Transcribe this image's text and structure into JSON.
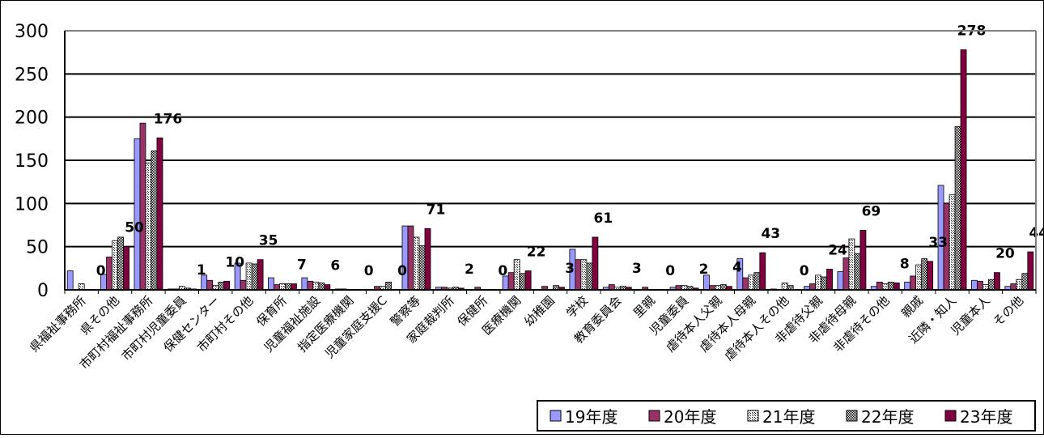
{
  "chart_data": {
    "type": "bar",
    "ylim": [
      0,
      300
    ],
    "y_ticks": [
      "0",
      "50",
      "100",
      "150",
      "200",
      "250",
      "300"
    ],
    "grid": true,
    "legend_position": "bottom-right",
    "categories": [
      "県福祉事務所",
      "県その他",
      "市町村福祉事務所",
      "市町村児童委員",
      "保健センター",
      "市町村その他",
      "保育所",
      "児童福祉施設",
      "指定医療機関",
      "児童家庭支援C",
      "警察等",
      "家庭裁判所",
      "保健所",
      "医療機関",
      "幼稚園",
      "学校",
      "教育委員会",
      "里親",
      "児童委員",
      "虐待本人父親",
      "虐待本人母親",
      "虐待本人その他",
      "非虐待父親",
      "非虐待母親",
      "非虐待その他",
      "親戚",
      "近隣・知人",
      "児童本人",
      "その他"
    ],
    "series": [
      {
        "name": "19年度",
        "color": "#9999ff",
        "values": [
          22,
          18,
          175,
          1,
          17,
          31,
          14,
          14,
          1,
          0,
          74,
          3,
          0,
          16,
          0,
          47,
          3,
          0,
          3,
          17,
          36,
          1,
          4,
          21,
          4,
          9,
          121,
          11,
          4
        ]
      },
      {
        "name": "20年度",
        "color": "#993366",
        "values": [
          0,
          38,
          193,
          1,
          11,
          11,
          6,
          10,
          1,
          4,
          74,
          3,
          3,
          20,
          4,
          35,
          6,
          3,
          5,
          5,
          14,
          0,
          7,
          37,
          9,
          16,
          100,
          10,
          7
        ]
      },
      {
        "name": "21年度",
        "color": "#e0e0e0",
        "values": [
          7,
          57,
          147,
          4,
          5,
          31,
          7,
          9,
          0,
          4,
          61,
          2,
          0,
          35,
          0,
          35,
          3,
          0,
          5,
          5,
          17,
          8,
          17,
          59,
          7,
          29,
          110,
          6,
          12
        ]
      },
      {
        "name": "22年度",
        "color": "#cfcfcf",
        "values": [
          0,
          61,
          161,
          2,
          9,
          30,
          7,
          8,
          0,
          9,
          51,
          3,
          0,
          19,
          5,
          31,
          4,
          0,
          4,
          6,
          20,
          5,
          15,
          42,
          9,
          36,
          189,
          12,
          19
        ]
      },
      {
        "name": "23年度",
        "color": "#800040",
        "values": [
          0,
          50,
          176,
          1,
          10,
          35,
          7,
          6,
          0,
          0,
          71,
          2,
          0,
          22,
          3,
          61,
          3,
          0,
          2,
          4,
          43,
          0,
          24,
          69,
          8,
          33,
          278,
          20,
          44
        ]
      }
    ],
    "data_labels": [
      "0",
      "50",
      "176",
      "1",
      "10",
      "35",
      "7",
      "6",
      "0",
      "0",
      "71",
      "2",
      "0",
      "22",
      "3",
      "61",
      "3",
      "0",
      "2",
      "4",
      "43",
      "0",
      "24",
      "69",
      "8",
      "33",
      "278",
      "20",
      "44"
    ]
  }
}
